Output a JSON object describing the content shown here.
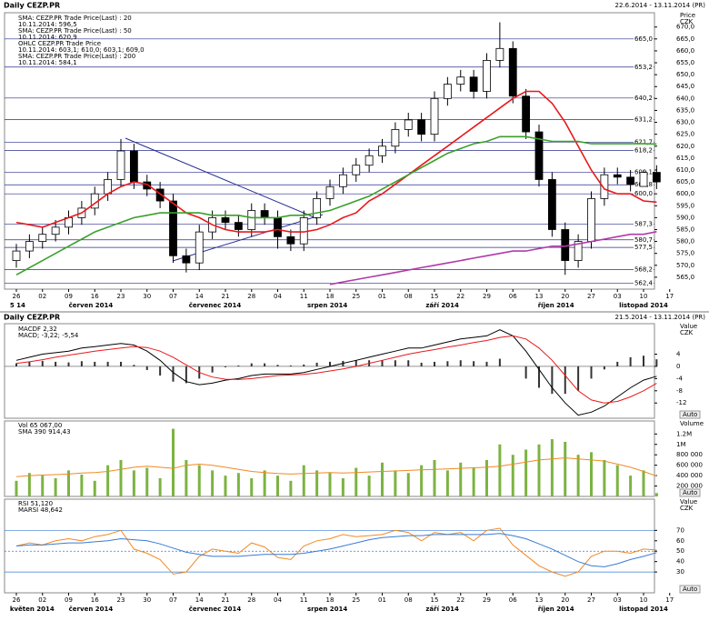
{
  "chart_data": [
    {
      "type": "candlestick",
      "title": "Daily CEZP.PR",
      "subtitle": "22.6.2014 - 13.11.2014 (PR)",
      "y_axis_label": [
        "Price",
        "CZK"
      ],
      "x_labels": [
        "26",
        "02",
        "09",
        "16",
        "23",
        "30",
        "07",
        "14",
        "21",
        "28",
        "04",
        "11",
        "18",
        "25",
        "01",
        "08",
        "15",
        "22",
        "29",
        "06",
        "13",
        "20",
        "27",
        "03",
        "10",
        "17"
      ],
      "months": [
        "5 14",
        "červen 2014",
        "červenec 2014",
        "srpen 2014",
        "září 2014",
        "říjen 2014",
        "listopad 2014"
      ],
      "open": [
        572,
        576,
        580,
        583,
        586,
        590,
        594,
        600,
        606,
        618,
        605,
        602,
        597,
        574,
        571,
        584,
        590,
        588,
        585,
        593,
        590,
        582,
        579,
        590,
        598,
        603,
        608,
        612,
        616,
        620,
        627,
        631,
        625,
        640,
        646,
        649,
        643,
        656,
        661,
        641,
        626,
        606,
        585,
        572,
        580,
        598,
        608,
        607,
        603.1,
        609
      ],
      "high": [
        579,
        583,
        586,
        589,
        593,
        597,
        603,
        609,
        623,
        621,
        608,
        605,
        600,
        577,
        587,
        593,
        593,
        591,
        596,
        596,
        593,
        585,
        593,
        601,
        606,
        611,
        615,
        619,
        623,
        630,
        634,
        634,
        643,
        649,
        652,
        652,
        659,
        672,
        664,
        644,
        629,
        609,
        588,
        583,
        601,
        611,
        611,
        610,
        610,
        612
      ],
      "low": [
        569,
        573,
        577,
        580,
        583,
        587,
        591,
        597,
        603,
        602,
        599,
        594,
        571,
        567,
        568,
        581,
        585,
        582,
        582,
        587,
        577,
        576,
        576,
        587,
        595,
        600,
        605,
        609,
        613,
        617,
        624,
        622,
        622,
        637,
        643,
        640,
        640,
        653,
        638,
        623,
        603,
        582,
        566,
        569,
        577,
        595,
        604,
        601,
        603.1,
        602
      ],
      "close": [
        576,
        580,
        583,
        586,
        590,
        594,
        600,
        606,
        618,
        605,
        602,
        597,
        574,
        571,
        584,
        590,
        588,
        585,
        593,
        590,
        582,
        579,
        590,
        598,
        603,
        608,
        612,
        616,
        620,
        627,
        631,
        625,
        640,
        646,
        649,
        643,
        656,
        661,
        641,
        626,
        606,
        585,
        572,
        580,
        598,
        608,
        607,
        604,
        609,
        605
      ],
      "up_color": "#ffffff",
      "down_color": "#000000",
      "ohlc_name": "OHLC CEZP.PR Trade Price",
      "ohlc_label": "10.11.2014: 603,1; 610,0; 603,1; 609,0",
      "series": [
        {
          "name": "SMA: CEZP.PR Trade Price(Last) : 20",
          "label": "10.11.2014: 596,5",
          "color": "#e8191b",
          "values": [
            588,
            587,
            586,
            588,
            590,
            592,
            596,
            600,
            603,
            605,
            604,
            600,
            596,
            592,
            590,
            587,
            585,
            584,
            584,
            584,
            585,
            584,
            584,
            585,
            587,
            590,
            592,
            597,
            600,
            604,
            608,
            612,
            616,
            620,
            624,
            628,
            632,
            636,
            640,
            643,
            643,
            638,
            630,
            620,
            610,
            602,
            600,
            600,
            597,
            596.5
          ]
        },
        {
          "name": "SMA: CEZP.PR Trade Price(Last) : 50",
          "label": "10.11.2014: 620,9",
          "color": "#3aa02a",
          "values": [
            566,
            569,
            572,
            575,
            578,
            581,
            584,
            586,
            588,
            590,
            591,
            592,
            592,
            592,
            592,
            591,
            591,
            591,
            590,
            590,
            590,
            591,
            591,
            592,
            593,
            595,
            597,
            599,
            602,
            605,
            608,
            611,
            614,
            617,
            619,
            621,
            622,
            624,
            624,
            624,
            623,
            622,
            622,
            622,
            621,
            621,
            621,
            621,
            621,
            620.9
          ]
        },
        {
          "name": "SMA: CEZP.PR Trade Price(Last) : 200",
          "label": "10.11.2014: 584,1",
          "color": "#b03aa8",
          "values": [
            null,
            null,
            null,
            null,
            null,
            null,
            null,
            null,
            null,
            null,
            null,
            null,
            null,
            null,
            null,
            null,
            null,
            null,
            null,
            null,
            null,
            null,
            null,
            null,
            562,
            563,
            564,
            565,
            566,
            567,
            568,
            569,
            570,
            571,
            572,
            573,
            574,
            575,
            576,
            576,
            577,
            578,
            578,
            579,
            580,
            581,
            582,
            583,
            583,
            584.1
          ]
        }
      ],
      "ylim": [
        560,
        676
      ],
      "yticks": [
        {
          "value": 565,
          "label": "565,0"
        },
        {
          "value": 570,
          "label": "570,0"
        },
        {
          "value": 575,
          "label": "575,0"
        },
        {
          "value": 580,
          "label": "580,0"
        },
        {
          "value": 585,
          "label": "585,0"
        },
        {
          "value": 590,
          "label": "590,0"
        },
        {
          "value": 595,
          "label": "595,0"
        },
        {
          "value": 600,
          "label": "600,0"
        },
        {
          "value": 605,
          "label": "605,0"
        },
        {
          "value": 610,
          "label": "610,0"
        },
        {
          "value": 615,
          "label": "615,0"
        },
        {
          "value": 620,
          "label": "620,0"
        },
        {
          "value": 625,
          "label": "625,0"
        },
        {
          "value": 630,
          "label": "630,0"
        },
        {
          "value": 635,
          "label": "635,0"
        },
        {
          "value": 640,
          "label": "640,0"
        },
        {
          "value": 645,
          "label": "645,0"
        },
        {
          "value": 650,
          "label": "650,0"
        },
        {
          "value": 655,
          "label": "655,0"
        },
        {
          "value": 660,
          "label": "660,0"
        },
        {
          "value": 665,
          "label": "665,0"
        },
        {
          "value": 670,
          "label": "670,0"
        }
      ],
      "levels": [
        {
          "value": 665,
          "label": "665,0"
        },
        {
          "value": 653.2,
          "label": "653,2"
        },
        {
          "value": 640.2,
          "label": "640,2"
        },
        {
          "value": 631.2,
          "label": "631,2"
        },
        {
          "value": 621.7,
          "label": "621,7"
        },
        {
          "value": 618.2,
          "label": "618,2"
        },
        {
          "value": 609.1,
          "label": "609,1"
        },
        {
          "value": 603.8,
          "label": "603,8"
        },
        {
          "value": 600,
          "label": "600,0"
        },
        {
          "value": 587.3,
          "label": "587,3"
        },
        {
          "value": 580.7,
          "label": "580,7"
        },
        {
          "value": 577.5,
          "label": "577,5"
        },
        {
          "value": 568.2,
          "label": "568,2"
        },
        {
          "value": 562.4,
          "label": "562,4"
        }
      ],
      "level_color": "#2a2f8f"
    },
    {
      "type": "macd",
      "title": "Daily CEZP.PR",
      "subtitle": "21.5.2014 - 13.11.2014 (PR)",
      "y_axis_label": [
        "Value",
        "CZK"
      ],
      "legend": [
        "MACDF 2,32",
        "MACD; -3,22; -5,54"
      ],
      "histogram": [
        1,
        1.5,
        1.8,
        1.5,
        1.3,
        1.7,
        1.5,
        1.5,
        1.5,
        0.5,
        -1.2,
        -3,
        -5,
        -5.5,
        -4,
        -2,
        -0.3,
        0.3,
        1,
        1,
        0.5,
        0.3,
        0.6,
        1.2,
        1.5,
        1.8,
        2,
        2,
        2,
        2,
        2,
        1.2,
        1.5,
        1.7,
        2,
        1.7,
        1.5,
        2.5,
        0,
        -4,
        -7,
        -9,
        -9,
        -8,
        -4,
        -1,
        1.5,
        3,
        3.5,
        2.32
      ],
      "histogram_color": "#333333",
      "series": [
        {
          "color": "#000000",
          "values": [
            2,
            3,
            4,
            4.5,
            5,
            6,
            6.5,
            7,
            7.5,
            7,
            5,
            2,
            -2,
            -5,
            -6,
            -5.5,
            -4.5,
            -4,
            -3,
            -2.5,
            -2.5,
            -2.5,
            -2,
            -1,
            0,
            1,
            2,
            3,
            4,
            5,
            6,
            6,
            7,
            8,
            9,
            9.5,
            10,
            12,
            10,
            5,
            -1,
            -7,
            -12,
            -16,
            -15,
            -13,
            -10,
            -7,
            -4.5,
            -3.22
          ]
        },
        {
          "color": "#e8191b",
          "values": [
            1,
            1.5,
            2.2,
            3,
            3.7,
            4.3,
            5,
            5.5,
            6,
            6.5,
            6.2,
            5,
            3,
            0.5,
            -2,
            -3.5,
            -4.2,
            -4.3,
            -4,
            -3.5,
            -3,
            -2.8,
            -2.6,
            -2.2,
            -1.5,
            -0.8,
            0,
            1,
            2,
            3,
            4,
            4.8,
            5.5,
            6.3,
            7,
            7.8,
            8.5,
            9.5,
            10,
            9,
            6,
            2,
            -3,
            -8,
            -11,
            -12,
            -11.5,
            -10,
            -8,
            -5.54
          ]
        }
      ],
      "ylim": [
        -17,
        14
      ],
      "yticks": [
        4,
        0,
        -4,
        -8,
        -12
      ],
      "auto_label": "Auto"
    },
    {
      "type": "volume",
      "y_axis_label": [
        "Volume"
      ],
      "legend": [
        "Vol 65 067,00",
        "SMA 390 914,43"
      ],
      "values": [
        300000,
        450000,
        400000,
        350000,
        500000,
        420000,
        300000,
        600000,
        700000,
        500000,
        550000,
        350000,
        1300000,
        700000,
        600000,
        500000,
        400000,
        450000,
        350000,
        500000,
        400000,
        300000,
        600000,
        500000,
        450000,
        350000,
        550000,
        400000,
        650000,
        500000,
        450000,
        600000,
        700000,
        500000,
        650000,
        550000,
        700000,
        1000000,
        800000,
        900000,
        1000000,
        1100000,
        1050000,
        800000,
        850000,
        700000,
        600000,
        400000,
        500000,
        65067
      ],
      "color": "#7cb342",
      "series": [
        {
          "color": "#f08a24",
          "values": [
            380000,
            400000,
            410000,
            420000,
            430000,
            450000,
            460000,
            480000,
            520000,
            560000,
            580000,
            560000,
            540000,
            600000,
            620000,
            600000,
            560000,
            520000,
            480000,
            460000,
            440000,
            430000,
            440000,
            450000,
            460000,
            450000,
            460000,
            470000,
            480000,
            490000,
            500000,
            510000,
            520000,
            530000,
            540000,
            550000,
            560000,
            580000,
            620000,
            660000,
            700000,
            720000,
            740000,
            720000,
            700000,
            680000,
            620000,
            560000,
            480000,
            390914.43
          ]
        }
      ],
      "ylim": [
        0,
        1450000
      ],
      "yticks": [
        {
          "value": 200000,
          "label": "200 000"
        },
        {
          "value": 400000,
          "label": "400 000"
        },
        {
          "value": 600000,
          "label": "600 000"
        },
        {
          "value": 800000,
          "label": "800 000"
        },
        {
          "value": 1000000,
          "label": "1M"
        },
        {
          "value": 1200000,
          "label": "1.2M"
        }
      ],
      "auto_label": "Auto"
    },
    {
      "type": "rsi",
      "y_axis_label": [
        "Value",
        "CZK"
      ],
      "legend": [
        "RSI 51,120",
        "MARSI 48,642"
      ],
      "series": [
        {
          "color": "#f08a24",
          "values": [
            55,
            58,
            56,
            60,
            62,
            60,
            64,
            66,
            70,
            52,
            48,
            42,
            28,
            30,
            45,
            52,
            50,
            48,
            58,
            54,
            44,
            42,
            55,
            60,
            62,
            66,
            64,
            65,
            66,
            70,
            68,
            60,
            68,
            66,
            68,
            60,
            70,
            72,
            56,
            46,
            36,
            30,
            26,
            30,
            45,
            50,
            50,
            48,
            52,
            51.12
          ]
        },
        {
          "color": "#3a7bd5",
          "values": [
            55,
            56,
            56,
            57,
            58,
            58,
            59,
            60,
            62,
            61,
            60,
            57,
            53,
            49,
            47,
            45,
            45,
            45,
            46,
            47,
            47,
            47,
            48,
            50,
            52,
            55,
            58,
            61,
            63,
            64,
            65,
            65,
            66,
            66,
            66,
            66,
            66,
            67,
            65,
            62,
            57,
            52,
            46,
            40,
            36,
            35,
            38,
            42,
            45,
            48.642
          ]
        }
      ],
      "ylim": [
        10,
        100
      ],
      "yticks": [
        30,
        40,
        50,
        60,
        70
      ],
      "levels": [
        30,
        50,
        70
      ],
      "auto_label": "Auto",
      "x_labels": [
        "26",
        "02",
        "09",
        "16",
        "23",
        "30",
        "07",
        "14",
        "21",
        "28",
        "04",
        "11",
        "18",
        "25",
        "01",
        "08",
        "15",
        "22",
        "29",
        "06",
        "13",
        "20",
        "27",
        "03",
        "10",
        "17"
      ],
      "months": [
        "květen 2014",
        "červen 2014",
        "červenec 2014",
        "srpen 2014",
        "září 2014",
        "říjen 2014",
        "listopad 2014"
      ]
    }
  ]
}
